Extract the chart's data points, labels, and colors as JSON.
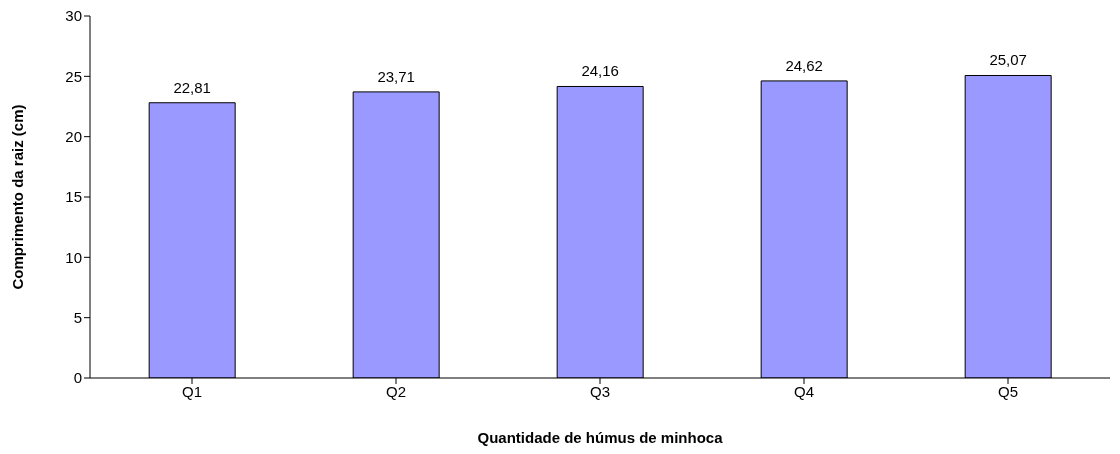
{
  "chart_data": {
    "type": "bar",
    "xlabel": "Quantidade de húmus de minhoca",
    "ylabel": "Comprimento da raiz (cm)",
    "categories": [
      "Q1",
      "Q2",
      "Q3",
      "Q4",
      "Q5"
    ],
    "values": [
      22.81,
      23.71,
      24.16,
      24.62,
      25.07
    ],
    "value_labels": [
      "22,81",
      "23,71",
      "24,16",
      "24,62",
      "25,07"
    ],
    "color": "#9999ff",
    "ylim": [
      0,
      30
    ],
    "yticks": [
      0,
      5,
      10,
      15,
      20,
      25,
      30
    ],
    "grid": false
  }
}
